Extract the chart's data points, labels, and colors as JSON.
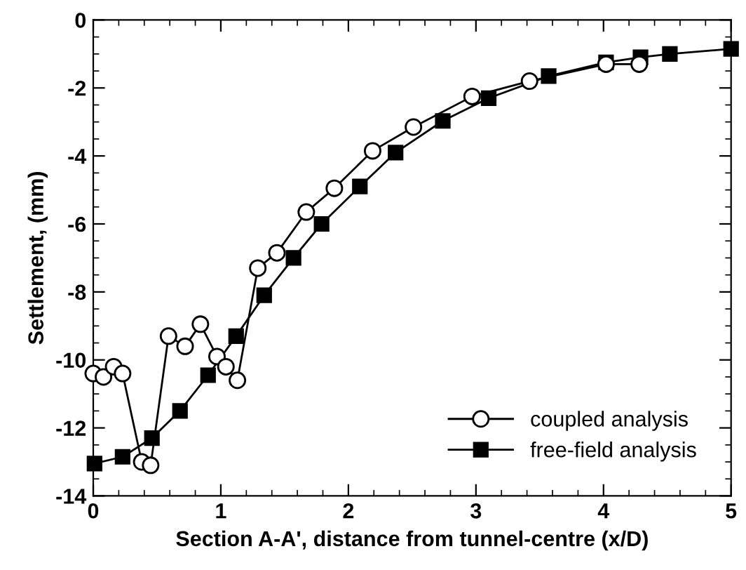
{
  "chart_data": {
    "type": "line",
    "xlabel": "Section A-A', distance from tunnel-centre (x/D)",
    "ylabel": "Settlement, (mm)",
    "xlim": [
      0,
      5
    ],
    "ylim": [
      -14,
      0
    ],
    "xticks": [
      0,
      1,
      2,
      3,
      4,
      5
    ],
    "yticks": [
      -14,
      -12,
      -10,
      -8,
      -6,
      -4,
      -2,
      0
    ],
    "grid": false,
    "legend": "bottom right",
    "line_style": "solid",
    "series": [
      {
        "name": "coupled analysis",
        "color": "#000000",
        "marker": "circle",
        "x": [
          0,
          0.08,
          0.16,
          0.23,
          0.38,
          0.45,
          0.59,
          0.72,
          0.84,
          0.97,
          1.04,
          1.13,
          1.29,
          1.44,
          1.67,
          1.89,
          2.19,
          2.51,
          2.97,
          3.42,
          4.02,
          4.28
        ],
        "values": [
          -10.4,
          -10.5,
          -10.2,
          -10.4,
          -13.0,
          -13.1,
          -9.3,
          -9.6,
          -8.95,
          -9.9,
          -10.2,
          -10.6,
          -7.3,
          -6.85,
          -5.65,
          -4.95,
          -3.85,
          -3.15,
          -2.25,
          -1.8,
          -1.3,
          -1.3
        ]
      },
      {
        "name": "free-field analysis",
        "color": "#000000",
        "marker": "square",
        "x": [
          0.01,
          0.23,
          0.46,
          0.68,
          0.9,
          1.12,
          1.34,
          1.57,
          1.79,
          2.09,
          2.37,
          2.74,
          3.1,
          3.57,
          4.02,
          4.29,
          4.52,
          5.0
        ],
        "values": [
          -13.05,
          -12.85,
          -12.3,
          -11.5,
          -10.45,
          -9.3,
          -8.1,
          -7.0,
          -6.0,
          -4.9,
          -3.9,
          -2.97,
          -2.3,
          -1.65,
          -1.25,
          -1.1,
          -1.0,
          -0.85
        ]
      }
    ]
  }
}
